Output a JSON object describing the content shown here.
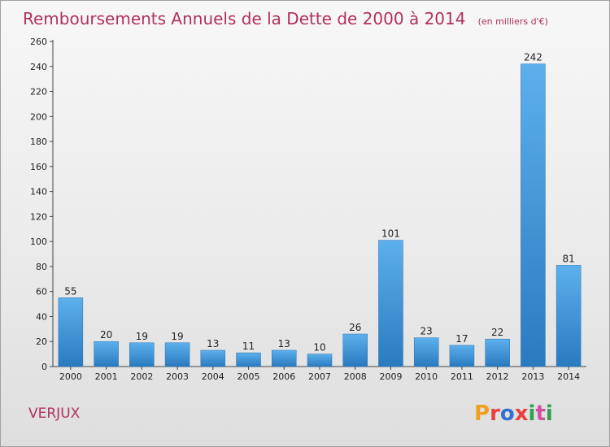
{
  "chart_data": {
    "type": "bar",
    "title": "Remboursements Annuels de la Dette de 2000 à 2014",
    "unit": "(en milliers d'€)",
    "categories": [
      "2000",
      "2001",
      "2002",
      "2003",
      "2004",
      "2005",
      "2006",
      "2007",
      "2008",
      "2009",
      "2010",
      "2011",
      "2012",
      "2013",
      "2014"
    ],
    "values": [
      55,
      20,
      19,
      19,
      13,
      11,
      13,
      10,
      26,
      101,
      23,
      17,
      22,
      242,
      81
    ],
    "ylim": [
      0,
      260
    ],
    "yticks": [
      0,
      20,
      40,
      60,
      80,
      100,
      120,
      140,
      160,
      180,
      200,
      220,
      240,
      260
    ],
    "grid": false,
    "legend": "none",
    "bar_color": "#3d8fd6"
  },
  "commune": "VERJUX",
  "brand": {
    "letters": [
      "P",
      "r",
      "o",
      "x",
      "i",
      "t",
      "i"
    ],
    "colors": [
      "#f0a020",
      "#e84040",
      "#3070d0",
      "#e84040",
      "#30a050",
      "#d050a0",
      "#30a050"
    ]
  }
}
